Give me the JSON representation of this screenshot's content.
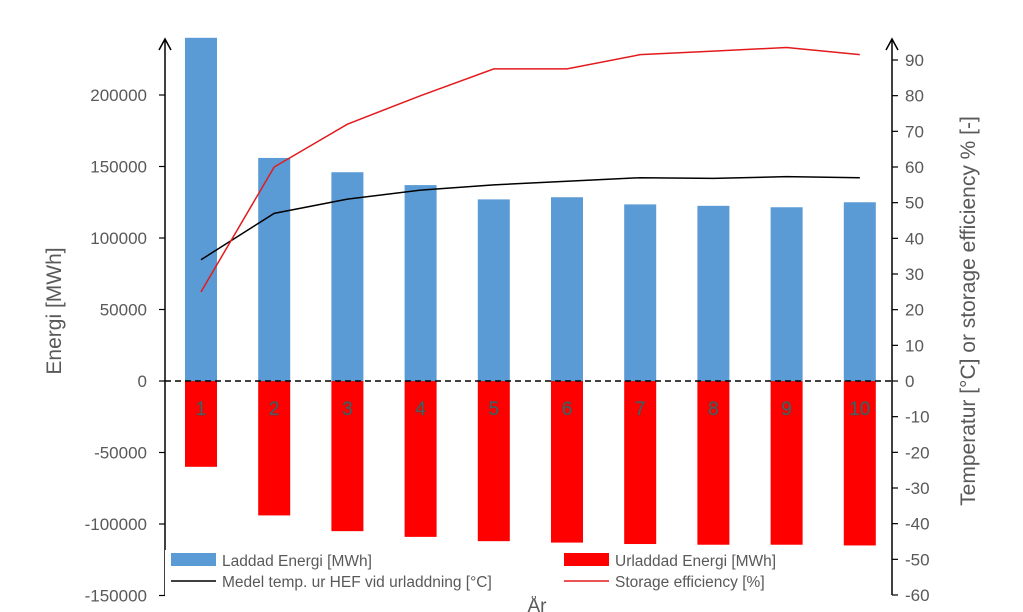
{
  "chart_data": {
    "type": "bar",
    "title": "",
    "categories": [
      "1",
      "2",
      "3",
      "4",
      "5",
      "6",
      "7",
      "8",
      "9",
      "10"
    ],
    "xlabel": "År",
    "ylabel": "Energi [MWh]",
    "y2label": "Temperatur [°C] or storage efficiency % [-]",
    "ylim": [
      -150000,
      240000
    ],
    "y2lim": [
      -60,
      97
    ],
    "yticks": [
      -150000,
      -100000,
      -50000,
      0,
      50000,
      100000,
      150000,
      200000
    ],
    "y2ticks": [
      -60,
      -50,
      -40,
      -30,
      -20,
      -10,
      0,
      10,
      20,
      30,
      40,
      50,
      60,
      70,
      80,
      90
    ],
    "series": [
      {
        "name": "Laddad Energi [MWh]",
        "type": "bar",
        "axis": "left",
        "color": "#5b9bd5",
        "values": [
          240000,
          156000,
          146000,
          137000,
          127000,
          128500,
          123500,
          122500,
          121500,
          125000
        ]
      },
      {
        "name": "Urladdad Energi [MWh]",
        "type": "bar",
        "axis": "left",
        "color": "#ff0000",
        "values": [
          -60000,
          -94000,
          -105000,
          -109000,
          -112000,
          -113000,
          -114000,
          -114500,
          -114500,
          -115000
        ]
      },
      {
        "name": "Medel temp. ur HEF vid urladdning [°C]",
        "type": "line",
        "axis": "right",
        "color": "#000000",
        "values": [
          34,
          47,
          51,
          53.5,
          55,
          56,
          57,
          56.8,
          57.3,
          57
        ]
      },
      {
        "name": "Storage efficiency [%]",
        "type": "line",
        "axis": "right",
        "color": "#e31a1c",
        "values": [
          25,
          60,
          72,
          80,
          87.5,
          87.5,
          91.5,
          92.5,
          93.5,
          91.5
        ]
      }
    ],
    "legend_position": "bottom",
    "grid": false
  }
}
